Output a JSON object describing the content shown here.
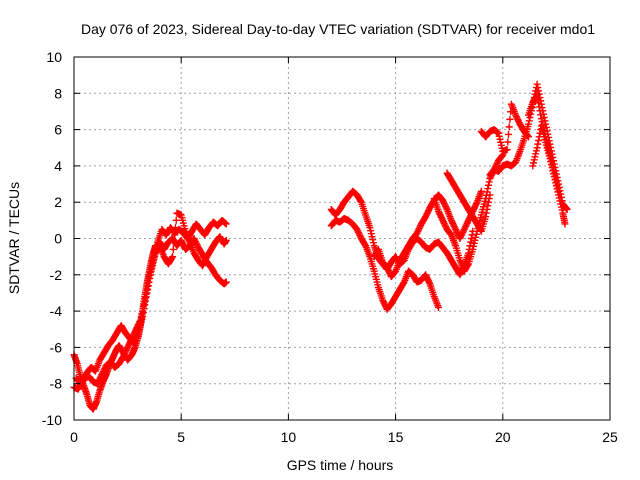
{
  "chart_data": {
    "type": "scatter",
    "title": "Day 076 of 2023, Sidereal Day-to-day VTEC variation (SDTVAR) for receiver mdo1",
    "xlabel": "GPS time / hours",
    "ylabel": "SDTVAR / TECUs",
    "xlim": [
      0,
      25
    ],
    "ylim": [
      -10,
      10
    ],
    "xticks": [
      0,
      5,
      10,
      15,
      20,
      25
    ],
    "yticks": [
      -10,
      -8,
      -6,
      -4,
      -2,
      0,
      2,
      4,
      6,
      8,
      10
    ],
    "grid": true,
    "marker": "plus",
    "color": "#ff0000",
    "series": [
      {
        "name": "SDTVAR",
        "segments": [
          [
            [
              0.0,
              -6.4
            ],
            [
              0.15,
              -6.9
            ],
            [
              0.3,
              -7.6
            ],
            [
              0.45,
              -8.1
            ],
            [
              0.6,
              -8.6
            ],
            [
              0.75,
              -9.2
            ],
            [
              0.9,
              -9.4
            ],
            [
              1.05,
              -9.0
            ],
            [
              1.2,
              -8.4
            ],
            [
              1.35,
              -7.9
            ],
            [
              1.5,
              -7.5
            ],
            [
              1.65,
              -7.0
            ],
            [
              1.8,
              -6.6
            ],
            [
              1.95,
              -6.2
            ],
            [
              2.1,
              -5.9
            ],
            [
              2.3,
              -6.3
            ],
            [
              2.5,
              -6.7
            ],
            [
              2.7,
              -6.4
            ],
            [
              2.85,
              -6.0
            ],
            [
              3.0,
              -5.4
            ],
            [
              3.1,
              -4.8
            ],
            [
              3.2,
              -4.0
            ],
            [
              3.3,
              -3.2
            ],
            [
              3.4,
              -2.5
            ],
            [
              3.5,
              -1.9
            ],
            [
              3.6,
              -1.3
            ],
            [
              3.7,
              -0.8
            ],
            [
              3.8,
              -0.4
            ],
            [
              3.9,
              -0.6
            ],
            [
              4.0,
              -0.2
            ],
            [
              4.2,
              -0.6
            ],
            [
              4.4,
              -0.2
            ],
            [
              4.6,
              0.0
            ],
            [
              4.8,
              -0.4
            ],
            [
              5.0,
              -0.1
            ],
            [
              5.2,
              -0.6
            ],
            [
              5.4,
              -0.4
            ],
            [
              5.6,
              0.0
            ],
            [
              5.8,
              -0.5
            ],
            [
              6.0,
              -0.9
            ],
            [
              6.2,
              -1.3
            ],
            [
              6.4,
              -1.6
            ],
            [
              6.6,
              -2.0
            ],
            [
              6.8,
              -2.3
            ],
            [
              7.0,
              -2.5
            ],
            [
              7.1,
              -2.4
            ]
          ],
          [
            [
              0.1,
              -7.7
            ],
            [
              0.3,
              -8.0
            ],
            [
              0.5,
              -7.7
            ],
            [
              0.7,
              -7.6
            ],
            [
              0.9,
              -7.9
            ],
            [
              1.1,
              -8.0
            ],
            [
              1.3,
              -7.5
            ],
            [
              1.5,
              -7.0
            ],
            [
              1.7,
              -6.8
            ],
            [
              1.9,
              -7.1
            ],
            [
              2.1,
              -6.9
            ],
            [
              2.3,
              -6.5
            ],
            [
              2.5,
              -6.0
            ],
            [
              2.7,
              -5.5
            ],
            [
              2.9,
              -5.0
            ],
            [
              3.1,
              -4.5
            ],
            [
              3.3,
              -3.5
            ],
            [
              3.5,
              -2.2
            ],
            [
              3.7,
              -1.2
            ],
            [
              3.9,
              -0.2
            ],
            [
              4.1,
              0.5
            ],
            [
              4.3,
              0.2
            ],
            [
              4.5,
              0.6
            ],
            [
              4.7,
              0.3
            ],
            [
              4.9,
              0.5
            ],
            [
              5.1,
              0.3
            ],
            [
              5.3,
              0.0
            ],
            [
              5.5,
              0.4
            ],
            [
              5.7,
              0.8
            ],
            [
              5.9,
              0.5
            ],
            [
              6.1,
              0.2
            ],
            [
              6.3,
              0.6
            ],
            [
              6.5,
              0.9
            ],
            [
              6.7,
              0.7
            ],
            [
              6.9,
              1.0
            ],
            [
              7.1,
              0.8
            ]
          ],
          [
            [
              0.0,
              -8.2
            ],
            [
              0.2,
              -8.3
            ],
            [
              0.4,
              -7.8
            ],
            [
              0.6,
              -7.4
            ],
            [
              0.8,
              -7.1
            ],
            [
              1.0,
              -7.3
            ],
            [
              1.2,
              -6.7
            ],
            [
              1.4,
              -6.3
            ],
            [
              1.6,
              -5.9
            ],
            [
              1.8,
              -5.6
            ],
            [
              2.0,
              -5.2
            ],
            [
              2.2,
              -4.8
            ],
            [
              2.4,
              -5.2
            ],
            [
              2.6,
              -5.5
            ],
            [
              2.8,
              -5.8
            ],
            [
              3.0,
              -5.2
            ],
            [
              3.2,
              -4.3
            ],
            [
              3.4,
              -3.0
            ],
            [
              3.6,
              -1.8
            ],
            [
              3.8,
              -0.8
            ],
            [
              4.0,
              -0.4
            ],
            [
              4.2,
              -1.0
            ],
            [
              4.4,
              -1.4
            ],
            [
              4.6,
              -1.0
            ],
            [
              4.8,
              1.4
            ],
            [
              5.0,
              1.3
            ],
            [
              5.2,
              0.4
            ],
            [
              5.4,
              -0.2
            ],
            [
              5.6,
              -0.8
            ],
            [
              5.8,
              -1.2
            ],
            [
              6.0,
              -1.5
            ],
            [
              6.2,
              -1.0
            ],
            [
              6.4,
              -0.6
            ],
            [
              6.6,
              -0.2
            ],
            [
              6.8,
              0.1
            ],
            [
              7.0,
              -0.3
            ],
            [
              7.1,
              -0.1
            ]
          ],
          [
            [
              12.0,
              1.6
            ],
            [
              12.2,
              1.3
            ],
            [
              12.4,
              1.6
            ],
            [
              12.6,
              2.0
            ],
            [
              12.8,
              2.3
            ],
            [
              13.0,
              2.6
            ],
            [
              13.2,
              2.4
            ],
            [
              13.4,
              2.0
            ],
            [
              13.6,
              1.3
            ],
            [
              13.8,
              0.6
            ],
            [
              14.0,
              -0.4
            ],
            [
              14.2,
              -1.1
            ],
            [
              14.4,
              -1.4
            ],
            [
              14.6,
              -1.7
            ],
            [
              14.8,
              -1.3
            ],
            [
              15.0,
              -1.0
            ],
            [
              15.2,
              -1.4
            ],
            [
              15.4,
              -1.2
            ],
            [
              15.6,
              -0.6
            ],
            [
              15.8,
              -0.2
            ],
            [
              16.0,
              0.0
            ],
            [
              16.2,
              -0.2
            ],
            [
              16.4,
              -0.5
            ],
            [
              16.6,
              -0.6
            ],
            [
              16.8,
              -0.3
            ],
            [
              17.0,
              -0.2
            ],
            [
              17.2,
              -0.5
            ],
            [
              17.4,
              -0.8
            ],
            [
              17.6,
              -1.2
            ],
            [
              17.8,
              -1.6
            ],
            [
              18.0,
              -2.0
            ],
            [
              18.2,
              -1.5
            ],
            [
              18.4,
              -0.8
            ],
            [
              18.6,
              0.4
            ]
          ],
          [
            [
              12.0,
              0.7
            ],
            [
              12.2,
              1.0
            ],
            [
              12.4,
              0.9
            ],
            [
              12.6,
              1.1
            ],
            [
              12.8,
              1.0
            ],
            [
              13.0,
              0.8
            ],
            [
              13.2,
              0.5
            ],
            [
              13.4,
              0.0
            ],
            [
              13.6,
              -0.4
            ],
            [
              13.8,
              -1.0
            ],
            [
              14.0,
              -1.8
            ],
            [
              14.2,
              -2.7
            ],
            [
              14.4,
              -3.4
            ],
            [
              14.6,
              -3.9
            ],
            [
              14.8,
              -3.6
            ],
            [
              15.0,
              -3.2
            ],
            [
              15.2,
              -2.8
            ],
            [
              15.4,
              -2.4
            ],
            [
              15.6,
              -1.8
            ],
            [
              15.8,
              -2.0
            ],
            [
              16.0,
              -2.4
            ],
            [
              16.2,
              -2.3
            ],
            [
              16.4,
              -2.0
            ],
            [
              16.6,
              -2.5
            ],
            [
              16.8,
              -3.2
            ],
            [
              17.0,
              -3.8
            ]
          ],
          [
            [
              14.0,
              -1.0
            ],
            [
              14.2,
              -0.6
            ],
            [
              14.4,
              -1.3
            ],
            [
              14.6,
              -1.6
            ],
            [
              14.8,
              -2.1
            ],
            [
              15.0,
              -1.8
            ],
            [
              15.2,
              -1.2
            ],
            [
              15.4,
              -0.8
            ],
            [
              15.6,
              -0.4
            ],
            [
              15.8,
              0.0
            ],
            [
              16.0,
              0.3
            ],
            [
              16.2,
              0.8
            ],
            [
              16.4,
              1.2
            ],
            [
              16.6,
              1.7
            ],
            [
              16.8,
              2.1
            ],
            [
              17.0,
              2.4
            ],
            [
              17.2,
              2.1
            ],
            [
              17.4,
              1.6
            ],
            [
              17.6,
              1.0
            ],
            [
              17.8,
              0.5
            ],
            [
              18.0,
              0.0
            ],
            [
              18.2,
              0.5
            ],
            [
              18.4,
              1.0
            ],
            [
              18.6,
              1.5
            ],
            [
              18.8,
              2.0
            ],
            [
              19.0,
              2.6
            ]
          ],
          [
            [
              16.8,
              2.2
            ],
            [
              17.0,
              1.5
            ],
            [
              17.2,
              1.0
            ],
            [
              17.4,
              0.5
            ],
            [
              17.6,
              0.2
            ],
            [
              17.8,
              -0.4
            ],
            [
              18.0,
              -1.2
            ],
            [
              18.2,
              -1.8
            ],
            [
              18.4,
              -1.4
            ],
            [
              18.6,
              -0.6
            ],
            [
              18.8,
              0.4
            ],
            [
              19.0,
              1.3
            ],
            [
              19.2,
              2.2
            ],
            [
              19.4,
              3.3
            ],
            [
              19.6,
              3.8
            ],
            [
              19.8,
              4.3
            ],
            [
              20.0,
              4.6
            ]
          ],
          [
            [
              17.4,
              3.6
            ],
            [
              17.6,
              3.2
            ],
            [
              17.8,
              2.8
            ],
            [
              18.0,
              2.4
            ],
            [
              18.2,
              2.0
            ],
            [
              18.4,
              1.6
            ],
            [
              18.6,
              1.2
            ],
            [
              18.8,
              0.8
            ],
            [
              19.0,
              0.4
            ],
            [
              19.2,
              1.2
            ],
            [
              19.4,
              2.4
            ]
          ],
          [
            [
              19.0,
              5.9
            ],
            [
              19.2,
              5.6
            ],
            [
              19.4,
              5.9
            ],
            [
              19.6,
              6.0
            ],
            [
              19.8,
              5.8
            ],
            [
              20.0,
              4.8
            ],
            [
              20.2,
              4.9
            ],
            [
              20.4,
              7.4
            ],
            [
              20.6,
              6.8
            ],
            [
              20.8,
              6.3
            ],
            [
              21.0,
              5.9
            ],
            [
              21.2,
              5.6
            ]
          ],
          [
            [
              19.4,
              3.5
            ],
            [
              19.6,
              3.8
            ],
            [
              19.8,
              3.7
            ],
            [
              20.0,
              4.0
            ],
            [
              20.2,
              4.1
            ],
            [
              20.4,
              4.0
            ],
            [
              20.6,
              4.2
            ],
            [
              20.8,
              4.8
            ],
            [
              21.0,
              5.5
            ],
            [
              21.2,
              6.3
            ],
            [
              21.4,
              7.4
            ],
            [
              21.6,
              8.5
            ],
            [
              21.8,
              7.4
            ],
            [
              22.0,
              6.3
            ],
            [
              22.2,
              5.2
            ],
            [
              22.4,
              4.1
            ],
            [
              22.6,
              3.0
            ],
            [
              22.8,
              1.9
            ],
            [
              23.0,
              1.6
            ]
          ],
          [
            [
              21.4,
              4.0
            ],
            [
              21.6,
              5.0
            ],
            [
              21.8,
              6.2
            ],
            [
              22.0,
              5.3
            ],
            [
              22.2,
              4.4
            ],
            [
              22.4,
              3.4
            ],
            [
              22.6,
              2.4
            ],
            [
              22.8,
              1.4
            ],
            [
              22.9,
              0.8
            ]
          ],
          [
            [
              21.2,
              6.8
            ],
            [
              21.4,
              7.5
            ],
            [
              21.6,
              7.9
            ],
            [
              21.8,
              6.6
            ],
            [
              22.0,
              5.6
            ],
            [
              22.2,
              4.6
            ],
            [
              22.4,
              3.6
            ],
            [
              22.6,
              2.6
            ]
          ]
        ]
      }
    ]
  }
}
